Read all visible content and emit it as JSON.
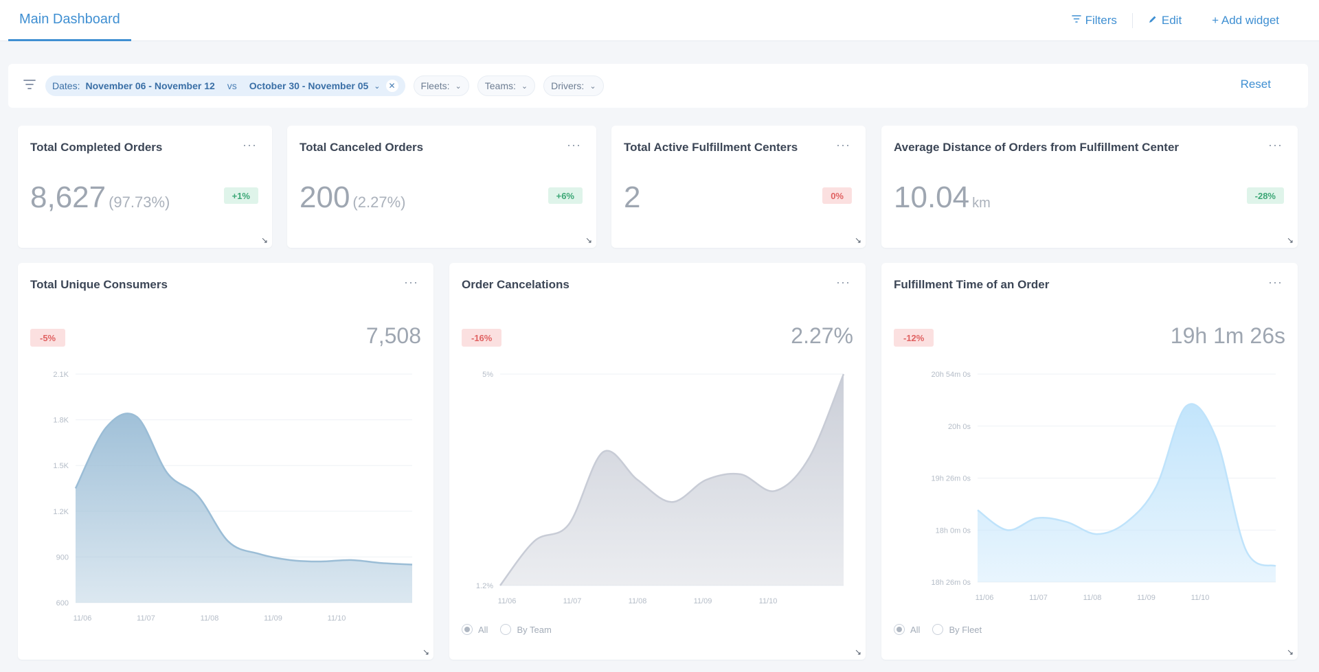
{
  "header": {
    "tab_label": "Main Dashboard",
    "filters_label": "Filters",
    "edit_label": "Edit",
    "add_widget_label": "+ Add widget"
  },
  "filterbar": {
    "date_chip": {
      "prefix": "Dates:",
      "current": "November 06 - November 12",
      "vs": "vs",
      "previous": "October 30 - November 05"
    },
    "fleets_label": "Fleets:",
    "teams_label": "Teams:",
    "drivers_label": "Drivers:",
    "reset_label": "Reset"
  },
  "kpis": [
    {
      "title": "Total Completed Orders",
      "value": "8,627",
      "sub": "(97.73%)",
      "change": "+1%",
      "trend": "up"
    },
    {
      "title": "Total Canceled Orders",
      "value": "200",
      "sub": "(2.27%)",
      "change": "+6%",
      "trend": "up"
    },
    {
      "title": "Total Active Fulfillment Centers",
      "value": "2",
      "sub": "",
      "change": "0%",
      "trend": "down"
    },
    {
      "title": "Average Distance of Orders from Fulfillment Center",
      "value": "10.04",
      "sub": "km",
      "change": "-28%",
      "trend": "up"
    }
  ],
  "charts": {
    "consumers": {
      "title": "Total Unique Consumers",
      "change": "-5%",
      "value": "7,508",
      "yticks": [
        "2.1K",
        "1.8K",
        "1.5K",
        "1.2K",
        "900",
        "600"
      ],
      "xticks": [
        "11/06",
        "11/07",
        "11/08",
        "11/09",
        "11/10"
      ],
      "color": "#9bbdd6"
    },
    "cancelations": {
      "title": "Order Cancelations",
      "change": "-16%",
      "value": "2.27%",
      "yticks": [
        "5%",
        "1.2%"
      ],
      "xticks": [
        "11/06",
        "11/07",
        "11/08",
        "11/09",
        "11/10"
      ],
      "radio_all": "All",
      "radio_by": "By Team",
      "color": "#c8ccd6"
    },
    "fulfillment": {
      "title": "Fulfillment Time of an Order",
      "change": "-12%",
      "value": "19h 1m 26s",
      "yticks": [
        "20h 54m 0s",
        "20h 0s",
        "19h 26m 0s",
        "18h 0m 0s",
        "18h 26m 0s"
      ],
      "xticks": [
        "11/06",
        "11/07",
        "11/08",
        "11/09",
        "11/10"
      ],
      "radio_all": "All",
      "radio_by": "By Fleet",
      "color": "#bfe3fb"
    }
  },
  "chart_data": [
    {
      "type": "area",
      "title": "Total Unique Consumers",
      "x": [
        "11/06",
        "",
        "11/07",
        "",
        "11/08",
        "",
        "11/09",
        "",
        "11/10",
        "",
        "",
        ""
      ],
      "values": [
        1350,
        1750,
        1820,
        1450,
        1300,
        1000,
        920,
        880,
        870,
        880,
        860,
        850
      ],
      "ylim": [
        600,
        2100
      ]
    },
    {
      "type": "area",
      "title": "Order Cancelations",
      "x": [
        "11/06",
        "",
        "11/07",
        "",
        "11/08",
        "",
        "11/09",
        "",
        "11/10",
        "",
        ""
      ],
      "values": [
        1.2,
        2.0,
        2.3,
        3.6,
        3.1,
        2.7,
        3.1,
        3.2,
        2.9,
        3.5,
        5.0
      ],
      "ylim": [
        1.2,
        5.0
      ]
    },
    {
      "type": "area",
      "title": "Fulfillment Time of an Order",
      "x": [
        "11/06",
        "",
        "11/07",
        "",
        "11/08",
        "",
        "11/09",
        "",
        "11/10",
        "",
        ""
      ],
      "values": [
        19.3,
        19.05,
        19.2,
        19.15,
        19.0,
        19.15,
        19.6,
        20.6,
        20.2,
        18.8,
        18.6
      ],
      "ylim": [
        18.4,
        21.0
      ]
    }
  ]
}
